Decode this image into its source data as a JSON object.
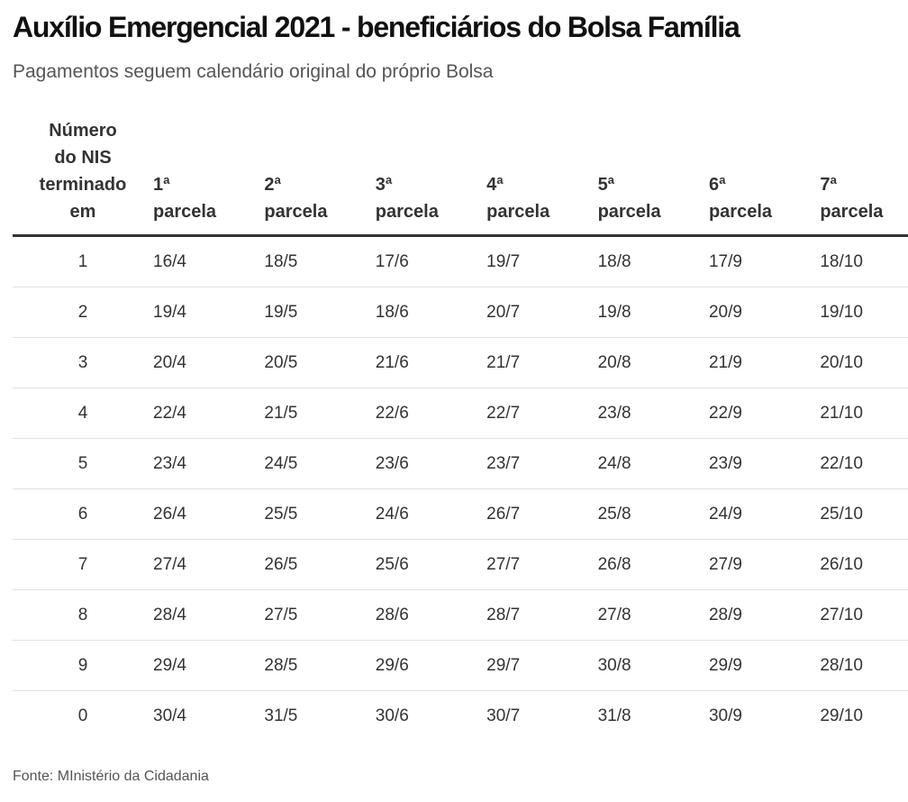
{
  "title": "Auxílio Emergencial 2021 - beneficiários do Bolsa Família",
  "subtitle": "Pagamentos seguem calendário original do próprio Bolsa",
  "table": {
    "nis_header_lines": [
      "Número",
      "do NIS",
      "terminado",
      "em"
    ],
    "installments": [
      {
        "ordinal": "1ª",
        "word": "parcela"
      },
      {
        "ordinal": "2ª",
        "word": "parcela"
      },
      {
        "ordinal": "3ª",
        "word": "parcela"
      },
      {
        "ordinal": "4ª",
        "word": "parcela"
      },
      {
        "ordinal": "5ª",
        "word": "parcela"
      },
      {
        "ordinal": "6ª",
        "word": "parcela"
      },
      {
        "ordinal": "7ª",
        "word": "parcela"
      }
    ],
    "rows": [
      {
        "nis": "1",
        "dates": [
          "16/4",
          "18/5",
          "17/6",
          "19/7",
          "18/8",
          "17/9",
          "18/10"
        ]
      },
      {
        "nis": "2",
        "dates": [
          "19/4",
          "19/5",
          "18/6",
          "20/7",
          "19/8",
          "20/9",
          "19/10"
        ]
      },
      {
        "nis": "3",
        "dates": [
          "20/4",
          "20/5",
          "21/6",
          "21/7",
          "20/8",
          "21/9",
          "20/10"
        ]
      },
      {
        "nis": "4",
        "dates": [
          "22/4",
          "21/5",
          "22/6",
          "22/7",
          "23/8",
          "22/9",
          "21/10"
        ]
      },
      {
        "nis": "5",
        "dates": [
          "23/4",
          "24/5",
          "23/6",
          "23/7",
          "24/8",
          "23/9",
          "22/10"
        ]
      },
      {
        "nis": "6",
        "dates": [
          "26/4",
          "25/5",
          "24/6",
          "26/7",
          "25/8",
          "24/9",
          "25/10"
        ]
      },
      {
        "nis": "7",
        "dates": [
          "27/4",
          "26/5",
          "25/6",
          "27/7",
          "26/8",
          "27/9",
          "26/10"
        ]
      },
      {
        "nis": "8",
        "dates": [
          "28/4",
          "27/5",
          "28/6",
          "28/7",
          "27/8",
          "28/9",
          "27/10"
        ]
      },
      {
        "nis": "9",
        "dates": [
          "29/4",
          "28/5",
          "29/6",
          "29/7",
          "30/8",
          "29/9",
          "28/10"
        ]
      },
      {
        "nis": "0",
        "dates": [
          "30/4",
          "31/5",
          "30/6",
          "30/7",
          "31/8",
          "30/9",
          "29/10"
        ]
      }
    ]
  },
  "source": "Fonte: MInistério da Cidadania"
}
